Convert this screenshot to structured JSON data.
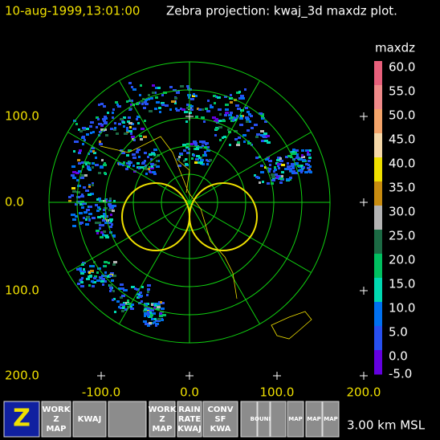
{
  "header": {
    "timestamp": "10-aug-1999,13:01:00",
    "title": "Zebra projection: kwaj_3d maxdz plot."
  },
  "colorbar": {
    "title": "maxdz",
    "labels": [
      "60.0",
      "55.0",
      "50.0",
      "45.0",
      "40.0",
      "35.0",
      "30.0",
      "25.0",
      "20.0",
      "15.0",
      "10.0",
      "5.0",
      "0.0",
      "-5.0"
    ],
    "colors": [
      "#e8607c",
      "#f08a8a",
      "#f4a46a",
      "#f6d8a8",
      "#f0e000",
      "#c88c10",
      "#b4b4b4",
      "#1c6a44",
      "#00c060",
      "#00d8b0",
      "#0070f0",
      "#2850f0",
      "#6400e0",
      "#9000ff"
    ]
  },
  "y_axis_labels": [
    "100.0",
    "0.0",
    "100.0",
    "200.0"
  ],
  "x_axis_labels": [
    "-100.0",
    "0.0",
    "100.0",
    "200.0"
  ],
  "toolbar": {
    "buttons": [
      {
        "lines": [
          "Z"
        ]
      },
      {
        "lines": [
          "WORK",
          "Z",
          "MAP"
        ]
      },
      {
        "lines": [
          "KWAJ"
        ]
      },
      {
        "lines": []
      },
      {
        "lines": [
          "WORK",
          "Z",
          "MAP"
        ]
      },
      {
        "lines": [
          "RAIN",
          "RATE",
          "KWAJ"
        ]
      },
      {
        "lines": [
          "CONV",
          "SF",
          "KWA"
        ]
      },
      {
        "lines": []
      },
      {
        "lines": [
          "BOUNDS"
        ]
      },
      {
        "lines": []
      },
      {
        "lines": [
          "MAP"
        ]
      },
      {
        "lines": [
          "MAP"
        ]
      },
      {
        "lines": [
          "MAP"
        ]
      }
    ],
    "altitude": "3.00 km MSL"
  }
}
